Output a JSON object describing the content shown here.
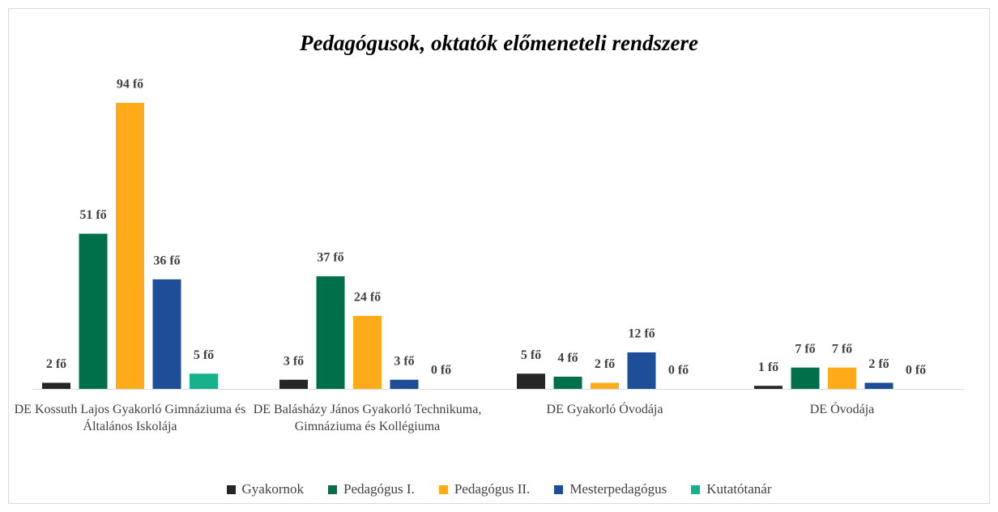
{
  "chart_data": {
    "type": "bar",
    "title": "Pedagógusok, oktatók előmeneteli rendszere",
    "categories": [
      "DE Kossuth Lajos Gyakorló Gimnáziuma és Általános Iskolája",
      "DE Balásházy János Gyakorló Technikuma, Gimnáziuma és Kollégiuma",
      "DE Gyakorló Óvodája",
      "DE Óvodája"
    ],
    "series": [
      {
        "name": "Gyakornok",
        "color": "#262626",
        "values": [
          2,
          3,
          5,
          1
        ],
        "value_labels": [
          "2 fő",
          "3 fő",
          "5 fő",
          "1 fő"
        ]
      },
      {
        "name": "Pedagógus I.",
        "color": "#00704a",
        "values": [
          51,
          37,
          4,
          7
        ],
        "value_labels": [
          "51 fő",
          "37 fő",
          "4 fő",
          "7 fő"
        ]
      },
      {
        "name": "Pedagógus II.",
        "color": "#ffab19",
        "values": [
          94,
          24,
          2,
          7
        ],
        "value_labels": [
          "94 fő",
          "24 fő",
          "2 fő",
          "7 fő"
        ]
      },
      {
        "name": "Mesterpedagógus",
        "color": "#1f4e99",
        "values": [
          36,
          3,
          12,
          2
        ],
        "value_labels": [
          "36 fő",
          "3 fő",
          "12 fő",
          "2 fő"
        ]
      },
      {
        "name": "Kutatótanár",
        "color": "#17b18a",
        "values": [
          5,
          0,
          0,
          0
        ],
        "value_labels": [
          "5 fő",
          "0 fő",
          "0 fő",
          "0 fő"
        ]
      }
    ],
    "legend": "bottom"
  }
}
